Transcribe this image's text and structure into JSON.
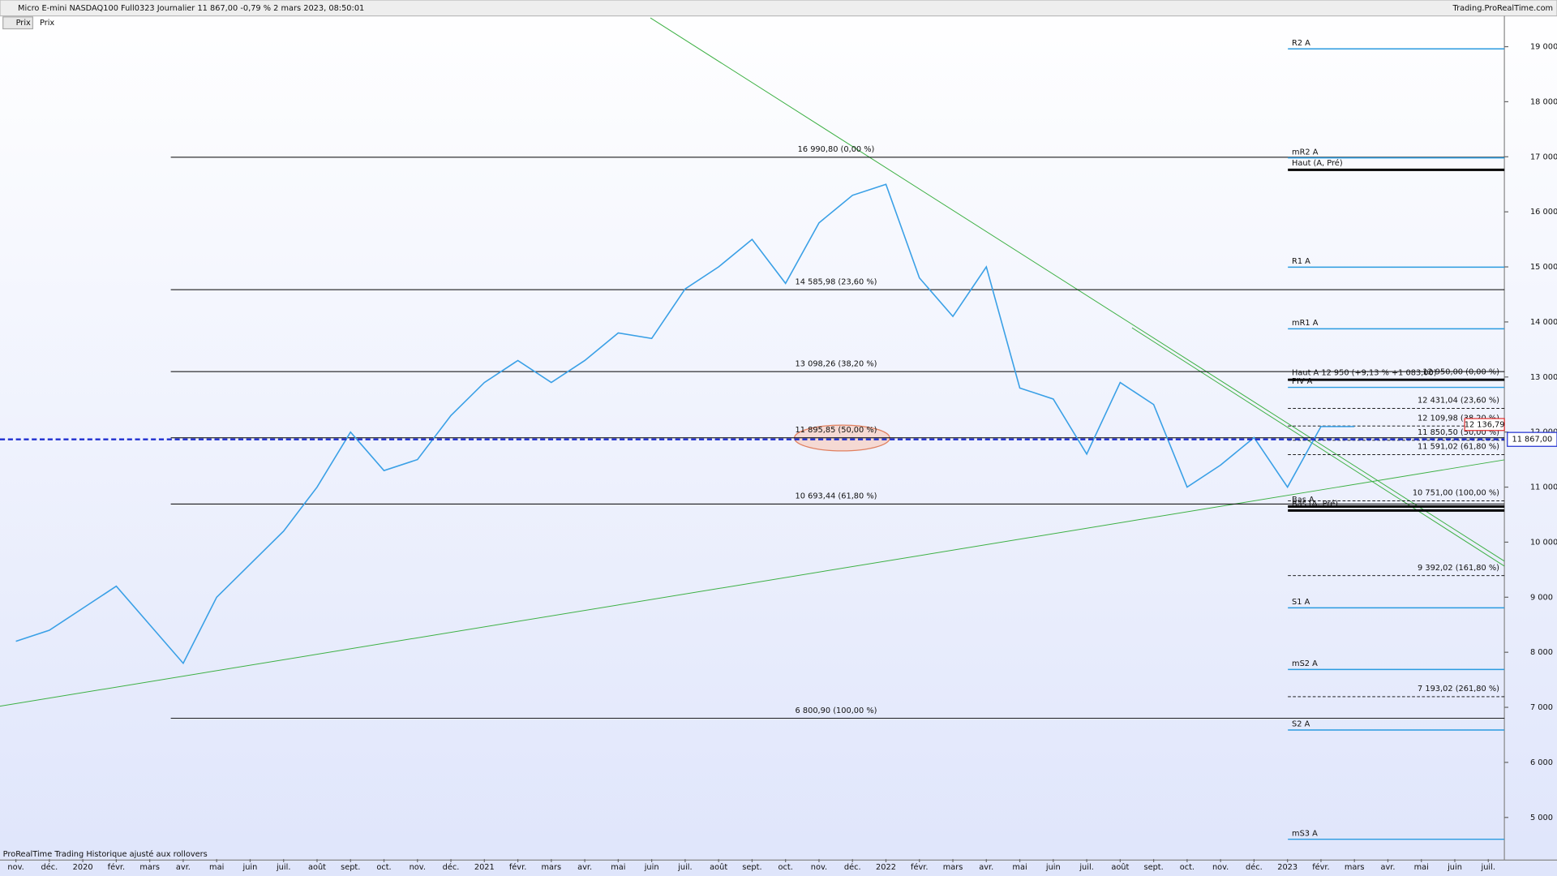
{
  "header": {
    "title": "Micro E-mini NASDAQ100 Full0323 Journalier 11 867,00 -0,79 % 2 mars 2023, 08:50:01",
    "site": "Trading.ProRealTime.com",
    "panel": "Prix",
    "footer": "ProRealTime Trading  Historique ajusté aux rollovers"
  },
  "chart_data": {
    "type": "line",
    "categories": [
      "nov.",
      "déc.",
      "2020",
      "févr.",
      "mars",
      "avr.",
      "mai",
      "juin",
      "juil.",
      "août",
      "sept.",
      "oct.",
      "nov.",
      "déc.",
      "2021",
      "févr.",
      "mars",
      "avr.",
      "mai",
      "juin",
      "juil.",
      "août",
      "sept.",
      "oct.",
      "nov.",
      "déc.",
      "2022",
      "févr.",
      "mars",
      "avr.",
      "mai",
      "juin",
      "juil.",
      "août",
      "sept.",
      "oct.",
      "nov.",
      "déc.",
      "2023",
      "févr.",
      "mars",
      "avr.",
      "mai",
      "juin",
      "juil."
    ],
    "series": [
      {
        "name": "Prix",
        "color": "#3aa0e6",
        "values": [
          8200,
          8400,
          8800,
          9200,
          8500,
          7800,
          9000,
          9600,
          10200,
          11000,
          12000,
          11300,
          11500,
          12300,
          12900,
          13300,
          12900,
          13300,
          13800,
          13700,
          14600,
          15000,
          15500,
          14700,
          15800,
          16300,
          16500,
          14800,
          14100,
          15000,
          12800,
          12600,
          11600,
          12900,
          12500,
          11000,
          11400,
          11900,
          11000,
          12100,
          12100,
          null,
          null,
          null,
          null
        ]
      }
    ],
    "ylim": [
      4243,
      19523
    ],
    "yticks": [
      {
        "value": 5000,
        "label": "5 000"
      },
      {
        "value": 6000,
        "label": "6 000"
      },
      {
        "value": 7000,
        "label": "7 000"
      },
      {
        "value": 8000,
        "label": "8 000"
      },
      {
        "value": 9000,
        "label": "9 000"
      },
      {
        "value": 10000,
        "label": "10 000"
      },
      {
        "value": 11000,
        "label": "11 000"
      },
      {
        "value": 12000,
        "label": "12 000"
      },
      {
        "value": 13000,
        "label": "13 000"
      },
      {
        "value": 14000,
        "label": "14 000"
      },
      {
        "value": 15000,
        "label": "15 000"
      },
      {
        "value": 16000,
        "label": "16 000"
      },
      {
        "value": 17000,
        "label": "17 000"
      },
      {
        "value": 18000,
        "label": "18 000"
      },
      {
        "value": 19000,
        "label": "19 000"
      }
    ],
    "fib_main": [
      {
        "value": 16990.8,
        "label": "16 990,80 (0,00 %)"
      },
      {
        "value": 14585.98,
        "label": "14 585,98 (23,60 %)"
      },
      {
        "value": 13098.26,
        "label": "13 098,26 (38,20 %)"
      },
      {
        "value": 11895.85,
        "label": "11 895,85 (50,00 %)"
      },
      {
        "value": 10693.44,
        "label": "10 693,44 (61,80 %)"
      },
      {
        "value": 6800.9,
        "label": "6 800,90 (100,00 %)"
      }
    ],
    "fib_right": [
      {
        "value": 12950,
        "label": "12 950,00 (0,00 %)"
      },
      {
        "value": 12431.04,
        "label": "12 431,04 (23,60 %)"
      },
      {
        "value": 12109.98,
        "label": "12 109,98 (38,20 %)"
      },
      {
        "value": 11850.5,
        "label": "11 850,50 (50,00 %)"
      },
      {
        "value": 11591.02,
        "label": "11 591,02 (61,80 %)"
      },
      {
        "value": 10751,
        "label": "10 751,00 (100,00 %)"
      },
      {
        "value": 9392.02,
        "label": "9 392,02 (161,80 %)"
      },
      {
        "value": 7193.02,
        "label": "7 193,02 (261,80 %)"
      }
    ],
    "pivots": [
      {
        "value": 18960,
        "label": "R2 A"
      },
      {
        "value": 16980,
        "label": "mR2 A"
      },
      {
        "value": 14995,
        "label": "R1 A"
      },
      {
        "value": 13876,
        "label": "mR1 A"
      },
      {
        "value": 12812,
        "label": "PIV A"
      },
      {
        "value": 8807,
        "label": "S1 A"
      },
      {
        "value": 7688,
        "label": "mS2 A"
      },
      {
        "value": 6588,
        "label": "S2 A"
      },
      {
        "value": 4604,
        "label": "mS3 A"
      }
    ],
    "highs_lows": [
      {
        "value": 16763,
        "label": "Haut (A, Pré)"
      },
      {
        "value": 12950,
        "label": "Haut A 12 950 (+9,13 % +1 083,00)"
      },
      {
        "value": 10647,
        "label": "Bas A"
      },
      {
        "value": 10575,
        "label": "Bas (A, Pré)"
      }
    ],
    "last": {
      "value": 11867,
      "label": "11 867,00"
    },
    "tag": {
      "value": 12136.79,
      "label": "12 136,79"
    }
  }
}
